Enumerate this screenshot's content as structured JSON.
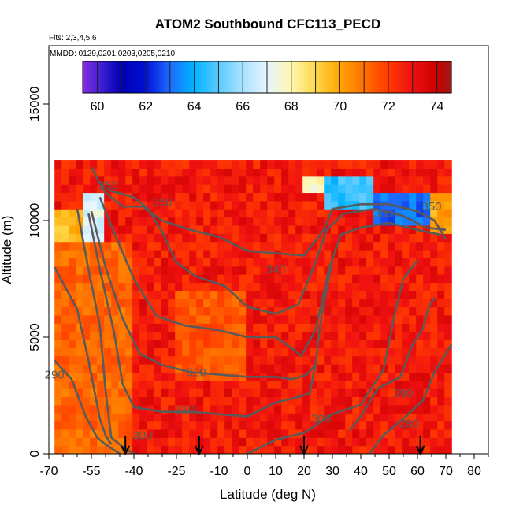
{
  "chart_data": {
    "type": "heatmap",
    "title": "ATOM2 Southbound CFC113_PECD",
    "subtitle_flights": "Flts: 2,3,4,5,6",
    "subtitle_dates": "MMDD: 0129,0201,0203,0205,0210",
    "xlabel": "Latitude (deg N)",
    "ylabel": "Altitude (m)",
    "xlim": [
      -70,
      85
    ],
    "ylim": [
      0,
      17500
    ],
    "x_ticks": [
      -70,
      -55,
      -40,
      -25,
      -10,
      0,
      10,
      20,
      30,
      40,
      50,
      60,
      70,
      80
    ],
    "x_tick_labels": [
      "-70",
      "-55",
      "-40",
      "-25",
      "-10",
      "0",
      "10",
      "20",
      "30",
      "40",
      "50",
      "60",
      "70",
      "80"
    ],
    "x_minor_ticks": [
      -65,
      -60,
      -50,
      -45,
      -35,
      -30,
      -20,
      -15,
      -5,
      5,
      15,
      25,
      35,
      45,
      55,
      65,
      75,
      85
    ],
    "y_ticks": [
      0,
      5000,
      10000,
      15000
    ],
    "y_tick_labels": [
      "0",
      "5000",
      "10000",
      "15000"
    ],
    "colorbar": {
      "range": [
        59.4,
        74.6
      ],
      "ticks": [
        60,
        62,
        64,
        66,
        68,
        70,
        72,
        74
      ],
      "tick_labels": [
        "60",
        "62",
        "64",
        "66",
        "68",
        "70",
        "72",
        "74"
      ],
      "stops": [
        {
          "v": 59.4,
          "c": "#8a2be2"
        },
        {
          "v": 60.2,
          "c": "#3a1fd0"
        },
        {
          "v": 61.0,
          "c": "#0000b0"
        },
        {
          "v": 62.0,
          "c": "#0010d8"
        },
        {
          "v": 63.0,
          "c": "#1e6cff"
        },
        {
          "v": 64.0,
          "c": "#00b4ff"
        },
        {
          "v": 65.0,
          "c": "#5ccbff"
        },
        {
          "v": 66.0,
          "c": "#a9e2ff"
        },
        {
          "v": 67.0,
          "c": "#e6f5ff"
        },
        {
          "v": 68.0,
          "c": "#fff6b0"
        },
        {
          "v": 69.0,
          "c": "#ffd84a"
        },
        {
          "v": 70.0,
          "c": "#ffa500"
        },
        {
          "v": 71.0,
          "c": "#ff7000"
        },
        {
          "v": 72.0,
          "c": "#ff3a00"
        },
        {
          "v": 73.0,
          "c": "#f01010"
        },
        {
          "v": 74.0,
          "c": "#c80000"
        },
        {
          "v": 74.6,
          "c": "#a01a1a"
        }
      ]
    },
    "field": {
      "lat_range": [
        -68,
        71
      ],
      "alt_range": [
        0,
        12400
      ],
      "background_value": 72.8,
      "features": [
        {
          "lat": [
            -57,
            -50
          ],
          "alt": [
            9000,
            11300
          ],
          "value": 67.0,
          "note": "yellow/white column near -55"
        },
        {
          "lat": [
            -68,
            -58
          ],
          "alt": [
            9000,
            10400
          ],
          "value": 69.6
        },
        {
          "lat": [
            20,
            28
          ],
          "alt": [
            11300,
            12000
          ],
          "value": 68.0
        },
        {
          "lat": [
            28,
            45
          ],
          "alt": [
            10400,
            11900
          ],
          "value": 64.5
        },
        {
          "lat": [
            45,
            64
          ],
          "alt": [
            9700,
            11300
          ],
          "value": 63.0
        },
        {
          "lat": [
            64,
            71
          ],
          "alt": [
            9300,
            11200
          ],
          "value": 70.0
        },
        {
          "lat": [
            -68,
            -40
          ],
          "alt": [
            0,
            9000
          ],
          "value": 71.2
        },
        {
          "lat": [
            -25,
            0
          ],
          "alt": [
            3000,
            7000
          ],
          "value": 71.5
        }
      ]
    },
    "contours": [
      {
        "label": "350",
        "points": [
          [
            -55,
            12300
          ],
          [
            -52,
            11600
          ],
          [
            -50,
            11200
          ],
          [
            -44,
            10600
          ],
          [
            -37,
            10600
          ],
          [
            -30,
            10000
          ],
          [
            -20,
            9600
          ],
          [
            -10,
            9300
          ],
          [
            0,
            8700
          ],
          [
            10,
            8600
          ],
          [
            20,
            8500
          ],
          [
            27,
            9600
          ],
          [
            30,
            10500
          ],
          [
            40,
            10700
          ],
          [
            50,
            10700
          ],
          [
            60,
            10400
          ],
          [
            66,
            10000
          ],
          [
            70,
            9200
          ]
        ]
      },
      {
        "label": "340",
        "points": [
          [
            -49,
            11300
          ],
          [
            -40,
            11000
          ],
          [
            -35,
            10500
          ],
          [
            -30,
            9500
          ],
          [
            -25,
            8200
          ],
          [
            -18,
            7600
          ],
          [
            -8,
            7200
          ],
          [
            0,
            6300
          ],
          [
            10,
            6000
          ],
          [
            18,
            6400
          ],
          [
            24,
            8200
          ],
          [
            28,
            9600
          ],
          [
            34,
            10300
          ],
          [
            45,
            10500
          ],
          [
            55,
            10200
          ],
          [
            63,
            9700
          ],
          [
            70,
            9600
          ]
        ]
      },
      {
        "label": "330",
        "points": [
          [
            -52,
            11000
          ],
          [
            -47,
            9500
          ],
          [
            -40,
            7500
          ],
          [
            -32,
            5900
          ],
          [
            -22,
            5500
          ],
          [
            -10,
            5300
          ],
          [
            0,
            5000
          ],
          [
            10,
            5000
          ],
          [
            16,
            4500
          ],
          [
            19,
            4200
          ],
          [
            24,
            5300
          ],
          [
            29,
            8000
          ],
          [
            33,
            9400
          ],
          [
            40,
            9700
          ],
          [
            50,
            9900
          ],
          [
            60,
            9600
          ],
          [
            68,
            9400
          ]
        ]
      },
      {
        "label": "320",
        "points": [
          [
            -55,
            10400
          ],
          [
            -50,
            8000
          ],
          [
            -44,
            5800
          ],
          [
            -38,
            4300
          ],
          [
            -30,
            3800
          ],
          [
            -20,
            3500
          ],
          [
            -10,
            3400
          ],
          [
            0,
            3300
          ],
          [
            10,
            3300
          ],
          [
            16,
            3200
          ],
          [
            21,
            3400
          ],
          [
            24,
            3800
          ],
          [
            26,
            5800
          ],
          [
            30,
            8300
          ]
        ]
      },
      {
        "label": "310",
        "points": [
          [
            -56,
            10300
          ],
          [
            -52,
            7900
          ],
          [
            -47,
            5200
          ],
          [
            -44,
            3000
          ],
          [
            -40,
            2000
          ],
          [
            -30,
            1800
          ],
          [
            -20,
            1800
          ],
          [
            -10,
            1700
          ],
          [
            0,
            1600
          ],
          [
            10,
            2200
          ],
          [
            17,
            2400
          ],
          [
            22,
            2600
          ],
          [
            24,
            3800
          ]
        ]
      },
      {
        "label": "300",
        "points": [
          [
            -60,
            10500
          ],
          [
            -56,
            7900
          ],
          [
            -52,
            5500
          ],
          [
            -50,
            2700
          ],
          [
            -48,
            700
          ],
          [
            -44,
            300
          ],
          [
            -40,
            0
          ]
        ]
      },
      {
        "label": "300",
        "points": [
          [
            -68,
            8000
          ],
          [
            -60,
            6200
          ],
          [
            -56,
            4000
          ],
          [
            -52,
            1500
          ],
          [
            -50,
            800
          ],
          [
            -48,
            400
          ]
        ]
      },
      {
        "label": "300",
        "points": [
          [
            0,
            0
          ],
          [
            10,
            600
          ],
          [
            20,
            900
          ],
          [
            30,
            1700
          ],
          [
            40,
            2100
          ],
          [
            48,
            3600
          ],
          [
            52,
            6000
          ],
          [
            55,
            7500
          ],
          [
            60,
            8300
          ]
        ]
      },
      {
        "label": "290",
        "points": [
          [
            -68,
            4000
          ],
          [
            -62,
            3200
          ],
          [
            -57,
            1600
          ],
          [
            -53,
            700
          ],
          [
            -50,
            400
          ],
          [
            -45,
            0
          ]
        ]
      },
      {
        "label": "290",
        "points": [
          [
            36,
            1000
          ],
          [
            40,
            1600
          ],
          [
            46,
            2800
          ],
          [
            54,
            3300
          ],
          [
            58,
            4600
          ],
          [
            62,
            5400
          ],
          [
            64,
            6300
          ],
          [
            66,
            6700
          ]
        ]
      },
      {
        "label": "280",
        "points": [
          [
            43,
            0
          ],
          [
            48,
            800
          ],
          [
            55,
            1500
          ],
          [
            62,
            2300
          ],
          [
            66,
            3500
          ],
          [
            70,
            4300
          ],
          [
            72,
            4700
          ]
        ]
      }
    ],
    "contour_labels": [
      {
        "text": "350",
        "lat": -30,
        "alt": 10800
      },
      {
        "text": "350",
        "lat": -49,
        "alt": 11500
      },
      {
        "text": "350",
        "lat": 65,
        "alt": 10600
      },
      {
        "text": "340",
        "lat": 10,
        "alt": 7900
      },
      {
        "text": "330",
        "lat": 48,
        "alt": 10300
      },
      {
        "text": "320",
        "lat": -18,
        "alt": 3500
      },
      {
        "text": "310",
        "lat": -22,
        "alt": 1900
      },
      {
        "text": "300",
        "lat": -37,
        "alt": 800
      },
      {
        "text": "300",
        "lat": 26,
        "alt": 1500
      },
      {
        "text": "290",
        "lat": -68,
        "alt": 3400
      },
      {
        "text": "290",
        "lat": 55,
        "alt": 2600
      },
      {
        "text": "280",
        "lat": 57,
        "alt": 1300
      }
    ],
    "markers": {
      "type": "arrow-down",
      "lats": [
        -43,
        -17,
        20,
        61
      ]
    }
  }
}
